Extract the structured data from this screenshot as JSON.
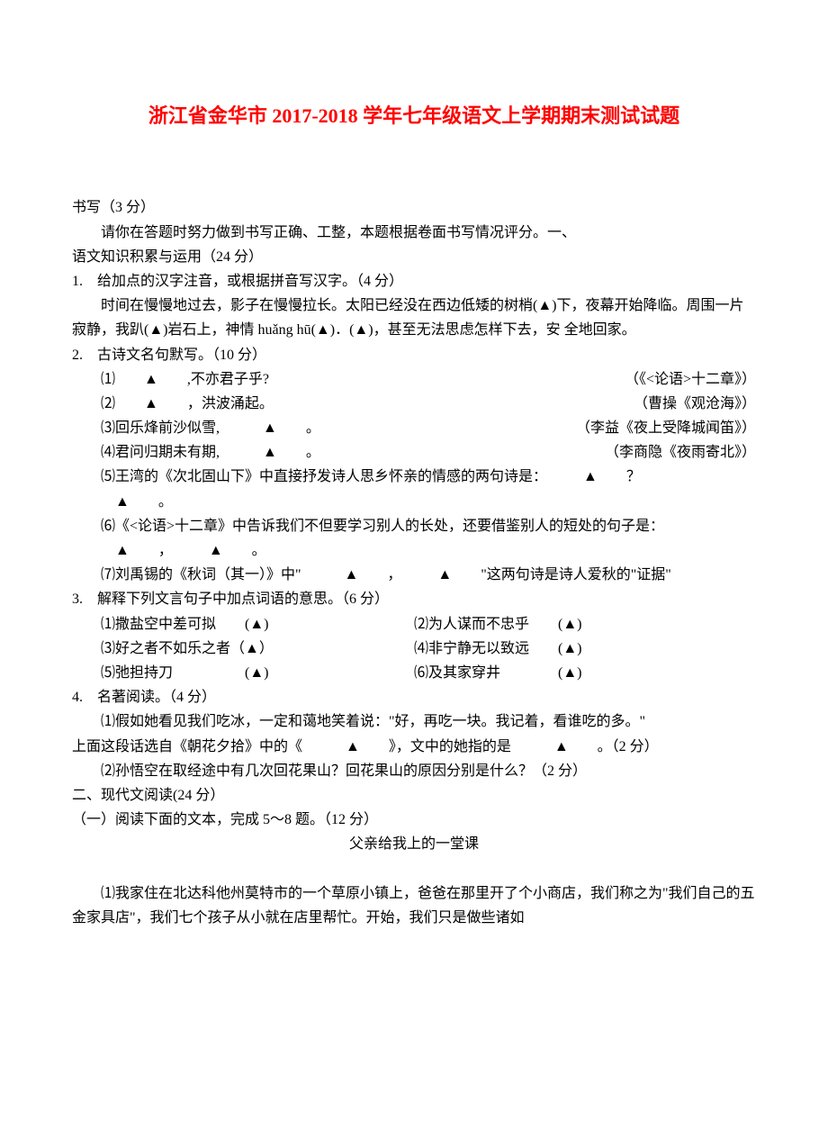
{
  "title": "浙江省金华市 2017-2018 学年七年级语文上学期期末测试试题",
  "intro": {
    "line1": "书写（3 分）",
    "line2": "请你在答题时努力做到书写正确、工整，本题根据卷面书写情况评分。一、",
    "line3": "语文知识积累与运用（24 分）"
  },
  "q1": {
    "head": "1.　给加点的汉字注音，或根据拼音写汉字。（4 分）",
    "body": "时间在慢慢地过去，影子在慢慢拉长。太阳已经没在西边低矮的树梢(▲)下，夜幕开始降临。周围一片寂静，我趴(▲)岩石上，神情 huǎng hū(▲)．(▲)，甚至无法思虑怎样下去，安 全地回家。"
  },
  "q2": {
    "head": "2.　古诗文名句默写。（10 分）",
    "i1": "⑴　　▲　　,不亦君子乎?",
    "s1": "（《<论语>十二章》）",
    "i2": "⑵　　▲　　，洪波涌起。",
    "s2": "（曹操《观沧海》）",
    "i3": "⑶回乐烽前沙似雪,　　　▲　　。",
    "s3": "（李益《夜上受降城闻笛》）",
    "i4": "⑷君问归期未有期,　　　▲　　。",
    "s4": "（李商隐《夜雨寄北》）",
    "i5a": "⑸王湾的《次北固山下》中直接抒发诗人思乡怀亲的情感的两句诗是：　　　▲　　？",
    "i5b": "　　　▲　　。",
    "i6a": "⑹《<论语>十二章》中告诉我们不但要学习别人的长处，还要借鉴别人的短处的句子是：",
    "i6b": "　　　▲　　，　　　▲　　。",
    "i7": "⑺刘禹锡的《秋词（其一）》中\"　　　▲　　，　　　▲　　\"这两句诗是诗人爱秋的\"证据\""
  },
  "q3": {
    "head": "3.　解释下列文言句子中加点词语的意思。（6 分）",
    "i1": "⑴撒盐空中差可拟　　(▲)",
    "i2": "⑵为人谋而不忠乎　　(▲)",
    "i3": "⑶好之者不如乐之者（▲）",
    "i4": "⑷非宁静无以致远　　(▲)",
    "i5": "⑸弛担持刀　　　　　(▲)",
    "i6": "⑹及其家穿井　　　　(▲)"
  },
  "q4": {
    "head": "4.　名著阅读。（4 分）",
    "i1": "⑴假如她看见我们吃冰，一定和蔼地笑着说：\"好，再吃一块。我记着，看谁吃的多。\"",
    "i1b": "上面这段话选自《朝花夕拾》中的《　　　▲　　》，文中的她指的是　　　▲　　。（2 分）",
    "i2": "⑵孙悟空在取经途中有几次回花果山？回花果山的原因分别是什么？（2 分）"
  },
  "section2": {
    "head": "二、现代文阅读(24 分）",
    "sub": "（一）阅读下面的文本，完成 5～8 题。（12 分）",
    "title": "父亲给我上的一堂课",
    "p1": "⑴我家住在北达科他州莫特市的一个草原小镇上，爸爸在那里开了个小商店，我们称之为\"我们自己的五金家具店\"，我们七个孩子从小就在店里帮忙。开始，我们只是做些诸如"
  },
  "colors": {
    "title_color": "#ff0000",
    "text_color": "#000000",
    "background_color": "#ffffff"
  }
}
